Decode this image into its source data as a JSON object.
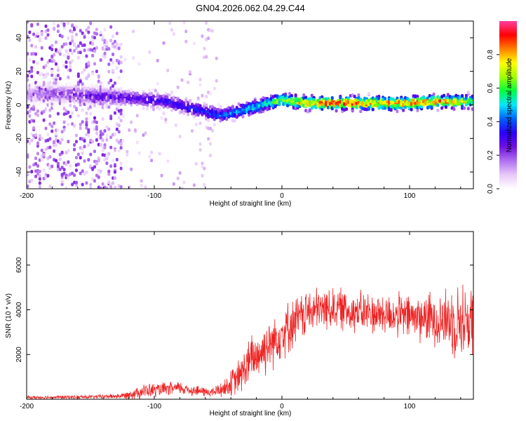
{
  "title": "GN04.2026.062.04.29.C44",
  "chart_data": [
    {
      "type": "heatmap",
      "name": "spectrogram",
      "xlabel": "Height of straight line (km)",
      "ylabel": "Frequency (Hz)",
      "xlim": [
        -200,
        150
      ],
      "ylim": [
        -50,
        50
      ],
      "xticks": [
        -200,
        -100,
        0,
        100
      ],
      "xtick_labels": [
        "-200",
        "-100",
        "0",
        "100"
      ],
      "yticks": [
        -40,
        -20,
        0,
        20,
        40
      ],
      "ytick_labels": [
        "-40",
        "-20",
        "0",
        "20",
        "40"
      ],
      "colorbar": {
        "label": "Normalized spectral amplitude",
        "range": [
          0,
          1
        ],
        "ticks": [
          0.0,
          0.2,
          0.4,
          0.6,
          0.8
        ],
        "tick_labels": [
          "0.0",
          "0.2",
          "0.4",
          "0.6",
          "0.8"
        ],
        "colors": [
          "#ffffff",
          "#e8c8f8",
          "#b070f0",
          "#7010e0",
          "#2a00ff",
          "#0060ff",
          "#00e8ff",
          "#00ff40",
          "#a0ff00",
          "#ffff00",
          "#ff8000",
          "#ff0000",
          "#ff40a0"
        ]
      },
      "ridge": {
        "x": [
          -200,
          -180,
          -160,
          -140,
          -120,
          -100,
          -90,
          -80,
          -70,
          -60,
          -50,
          -45,
          -40,
          -30,
          -20,
          -10,
          0,
          10,
          20,
          40,
          60,
          80,
          100,
          120,
          140,
          150
        ],
        "frequency": [
          6,
          7,
          6,
          5,
          4,
          3,
          2,
          0,
          -2,
          -4,
          -6,
          -6,
          -5,
          -3,
          -1,
          1,
          3,
          2,
          1,
          1,
          1,
          1,
          1,
          2,
          2,
          2
        ],
        "amplitude": [
          0.15,
          0.2,
          0.25,
          0.3,
          0.3,
          0.32,
          0.35,
          0.35,
          0.38,
          0.4,
          0.42,
          0.42,
          0.45,
          0.5,
          0.55,
          0.6,
          0.7,
          0.75,
          0.85,
          0.9,
          0.85,
          0.85,
          0.88,
          0.85,
          0.75,
          0.7
        ]
      },
      "noise_region_x": [
        -200,
        -125
      ]
    },
    {
      "type": "line",
      "name": "snr",
      "xlabel": "Height of straight line (km)",
      "ylabel": "SNR (10 * v/v)",
      "xlim": [
        -200,
        150
      ],
      "ylim": [
        0,
        7500
      ],
      "xticks": [
        -200,
        -100,
        0,
        100
      ],
      "xtick_labels": [
        "-200",
        "-100",
        "0",
        "100"
      ],
      "yticks": [
        2000,
        4000,
        6000
      ],
      "ytick_labels": [
        "2000",
        "4000",
        "6000"
      ],
      "color": "#ee2222",
      "envelope": {
        "x": [
          -200,
          -150,
          -125,
          -110,
          -90,
          -80,
          -70,
          -55,
          -45,
          -35,
          -25,
          -15,
          0,
          20,
          40,
          60,
          80,
          100,
          120,
          140,
          150
        ],
        "mean": [
          80,
          100,
          150,
          350,
          450,
          500,
          400,
          300,
          500,
          900,
          1700,
          2200,
          3000,
          3900,
          4100,
          3900,
          3800,
          3700,
          3600,
          3500,
          3500
        ],
        "spread": [
          80,
          100,
          150,
          400,
          350,
          350,
          300,
          250,
          500,
          900,
          1300,
          1400,
          1400,
          1200,
          1100,
          1100,
          1100,
          1200,
          1400,
          2000,
          2000
        ]
      }
    }
  ]
}
